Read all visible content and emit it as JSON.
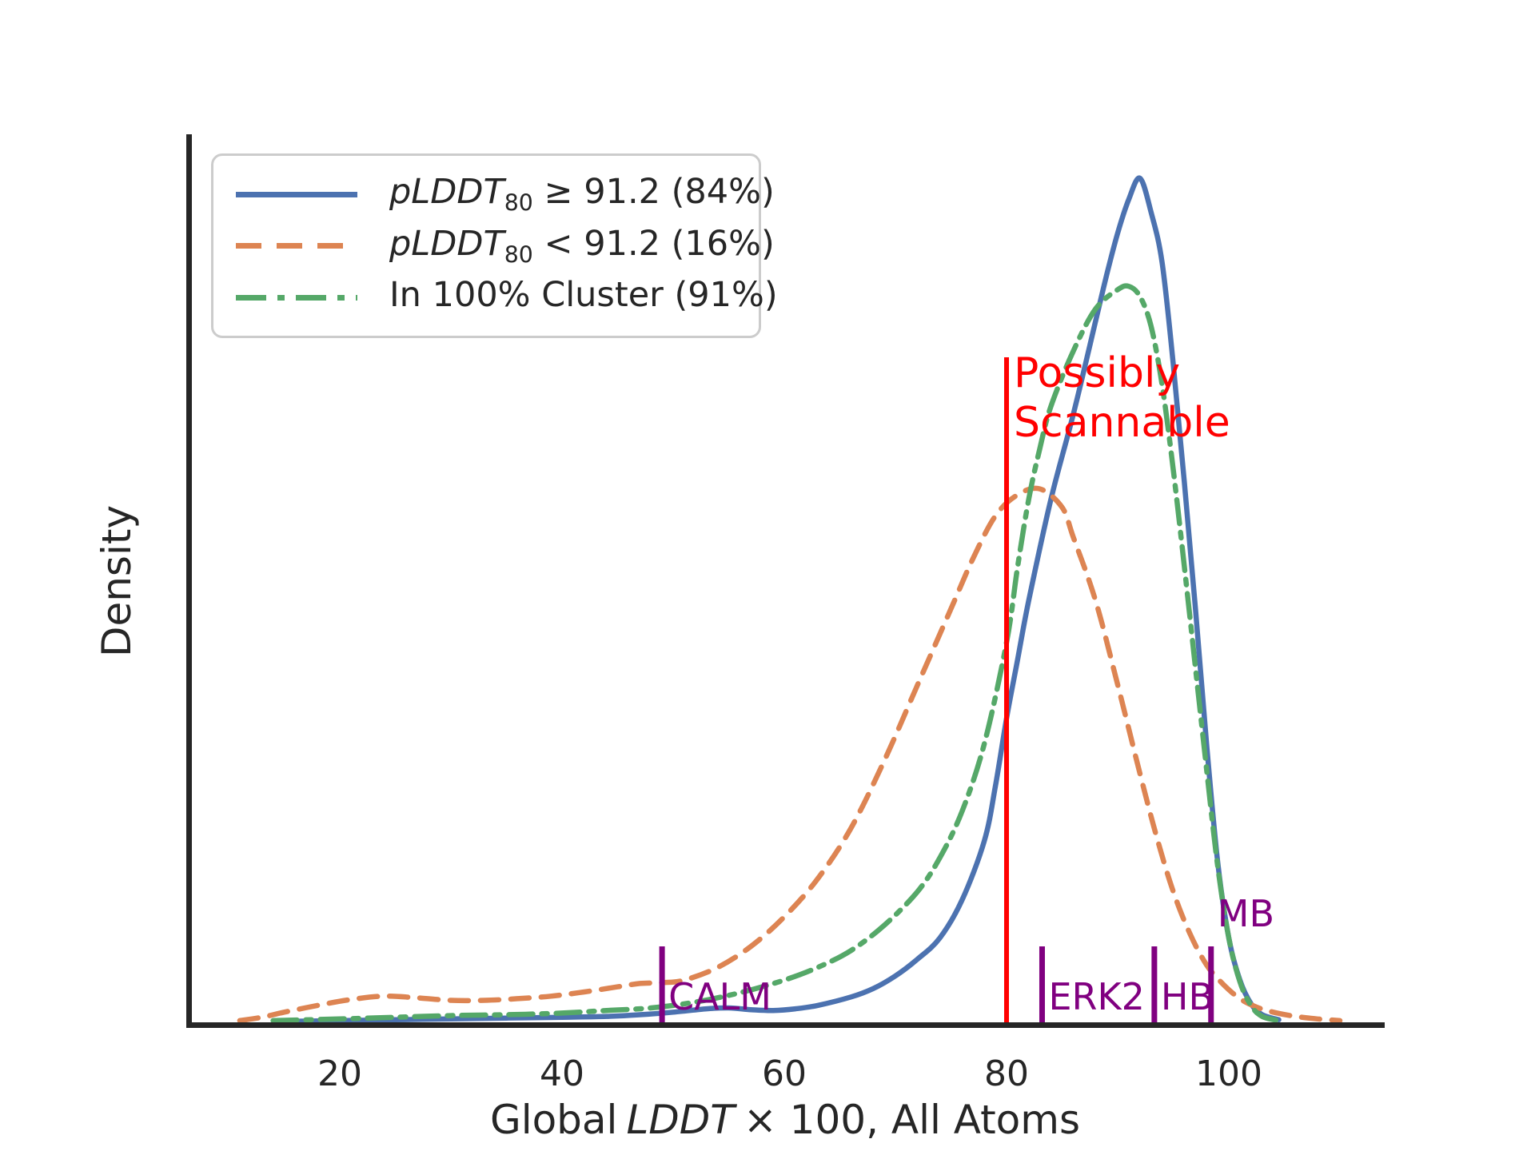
{
  "figure": {
    "background": "#ffffff",
    "axis_color": "#262626",
    "ylabel": "Density",
    "xlabel": {
      "prefix": "Global",
      "italic": "LDDT",
      "suffix": "× 100, All Atoms"
    },
    "x_ticks": [
      {
        "label": "20",
        "value": 20
      },
      {
        "label": "40",
        "value": 40
      },
      {
        "label": "60",
        "value": 60
      },
      {
        "label": "80",
        "value": 80
      },
      {
        "label": "100",
        "value": 100
      }
    ]
  },
  "legend": {
    "items": [
      {
        "key": "plddt_high",
        "italic": "pLDDT",
        "sub": "80",
        "rest": " ≥ 91.2 (84%)",
        "color": "#4C72B0",
        "dash": "solid"
      },
      {
        "key": "plddt_low",
        "italic": "pLDDT",
        "sub": "80",
        "rest": " < 91.2 (16%)",
        "color": "#DD8452",
        "dash": "dashed"
      },
      {
        "key": "in_cluster",
        "italic": "",
        "sub": "",
        "rest": "In 100% Cluster (91%)",
        "color": "#55A868",
        "dash": "dashdot"
      }
    ]
  },
  "chart_data": {
    "type": "line",
    "subtype": "kde-density",
    "title": "",
    "xlabel": "Global LDDT × 100, All Atoms",
    "ylabel": "Density",
    "xlim": [
      6,
      114
    ],
    "ylim_relative": [
      0,
      1.08
    ],
    "grid": false,
    "legend_position": "upper left",
    "note": "y values are density relative to the tallest (blue) peak = 1.0; no y tick labels shown in figure",
    "series": [
      {
        "name": "pLDDT80 ≥ 91.2 (84%)",
        "key": "plddt_high",
        "color": "#4C72B0",
        "linestyle": "solid",
        "points": [
          [
            15,
            0.001
          ],
          [
            20,
            0.002
          ],
          [
            25,
            0.003
          ],
          [
            30,
            0.004
          ],
          [
            35,
            0.005
          ],
          [
            40,
            0.006
          ],
          [
            44,
            0.007
          ],
          [
            47,
            0.009
          ],
          [
            50,
            0.012
          ],
          [
            53,
            0.016
          ],
          [
            55,
            0.017
          ],
          [
            57,
            0.015
          ],
          [
            59,
            0.014
          ],
          [
            61,
            0.016
          ],
          [
            63,
            0.02
          ],
          [
            66,
            0.03
          ],
          [
            68,
            0.04
          ],
          [
            70,
            0.055
          ],
          [
            72,
            0.075
          ],
          [
            74,
            0.1
          ],
          [
            76,
            0.145
          ],
          [
            78,
            0.215
          ],
          [
            79,
            0.28
          ],
          [
            80,
            0.36
          ],
          [
            81,
            0.43
          ],
          [
            82,
            0.5
          ],
          [
            84,
            0.62
          ],
          [
            86,
            0.72
          ],
          [
            88,
            0.83
          ],
          [
            89,
            0.885
          ],
          [
            90,
            0.935
          ],
          [
            91,
            0.975
          ],
          [
            92,
            1.0
          ],
          [
            93,
            0.96
          ],
          [
            94,
            0.9
          ],
          [
            95,
            0.78
          ],
          [
            96,
            0.64
          ],
          [
            97,
            0.49
          ],
          [
            98,
            0.33
          ],
          [
            99,
            0.19
          ],
          [
            100,
            0.1
          ],
          [
            101,
            0.05
          ],
          [
            102,
            0.022
          ],
          [
            103,
            0.009
          ],
          [
            104.5,
            0.003
          ]
        ]
      },
      {
        "name": "pLDDT80 < 91.2 (16%)",
        "key": "plddt_low",
        "color": "#DD8452",
        "linestyle": "dashed",
        "points": [
          [
            11,
            0.002
          ],
          [
            13,
            0.006
          ],
          [
            15,
            0.012
          ],
          [
            18,
            0.02
          ],
          [
            21,
            0.027
          ],
          [
            24,
            0.031
          ],
          [
            27,
            0.029
          ],
          [
            30,
            0.026
          ],
          [
            33,
            0.026
          ],
          [
            36,
            0.028
          ],
          [
            39,
            0.031
          ],
          [
            42,
            0.036
          ],
          [
            45,
            0.042
          ],
          [
            47,
            0.046
          ],
          [
            49,
            0.047
          ],
          [
            51,
            0.05
          ],
          [
            54,
            0.065
          ],
          [
            57,
            0.09
          ],
          [
            60,
            0.125
          ],
          [
            63,
            0.17
          ],
          [
            66,
            0.23
          ],
          [
            69,
            0.31
          ],
          [
            72,
            0.4
          ],
          [
            75,
            0.49
          ],
          [
            77,
            0.55
          ],
          [
            79,
            0.6
          ],
          [
            81,
            0.625
          ],
          [
            83,
            0.632
          ],
          [
            85,
            0.61
          ],
          [
            86,
            0.575
          ],
          [
            88,
            0.5
          ],
          [
            90,
            0.4
          ],
          [
            92,
            0.295
          ],
          [
            93.5,
            0.22
          ],
          [
            95,
            0.155
          ],
          [
            96.5,
            0.105
          ],
          [
            98,
            0.068
          ],
          [
            99.5,
            0.045
          ],
          [
            101,
            0.028
          ],
          [
            102.5,
            0.018
          ],
          [
            104,
            0.012
          ],
          [
            106,
            0.007
          ],
          [
            108,
            0.004
          ],
          [
            110,
            0.002
          ]
        ]
      },
      {
        "name": "In 100% Cluster (91%)",
        "key": "in_cluster",
        "color": "#55A868",
        "linestyle": "dashdot",
        "points": [
          [
            14,
            0.002
          ],
          [
            20,
            0.004
          ],
          [
            25,
            0.006
          ],
          [
            30,
            0.008
          ],
          [
            35,
            0.009
          ],
          [
            40,
            0.011
          ],
          [
            44,
            0.014
          ],
          [
            48,
            0.017
          ],
          [
            52,
            0.024
          ],
          [
            56,
            0.035
          ],
          [
            60,
            0.05
          ],
          [
            63,
            0.065
          ],
          [
            66,
            0.085
          ],
          [
            69,
            0.115
          ],
          [
            72,
            0.155
          ],
          [
            74,
            0.195
          ],
          [
            76,
            0.25
          ],
          [
            78,
            0.33
          ],
          [
            80,
            0.45
          ],
          [
            81,
            0.54
          ],
          [
            82,
            0.62
          ],
          [
            83,
            0.68
          ],
          [
            84,
            0.73
          ],
          [
            86,
            0.795
          ],
          [
            88,
            0.845
          ],
          [
            90,
            0.868
          ],
          [
            91,
            0.872
          ],
          [
            92,
            0.86
          ],
          [
            93,
            0.825
          ],
          [
            94,
            0.755
          ],
          [
            95,
            0.655
          ],
          [
            96,
            0.54
          ],
          [
            97,
            0.42
          ],
          [
            98,
            0.3
          ],
          [
            99,
            0.185
          ],
          [
            100,
            0.1
          ],
          [
            101,
            0.048
          ],
          [
            102,
            0.02
          ],
          [
            103,
            0.007
          ],
          [
            104.5,
            0.002
          ]
        ]
      }
    ],
    "vline": {
      "x": 80,
      "color": "#ff0000",
      "label_lines": [
        "Possibly",
        "Scannable"
      ]
    },
    "marker_color": "#800080",
    "reference_markers": [
      {
        "name": "CALM",
        "x": 49,
        "label_position": "right"
      },
      {
        "name": "ERK2",
        "x": 83.2,
        "label_position": "right"
      },
      {
        "name": "HB",
        "x": 93.3,
        "label_position": "right"
      },
      {
        "name": "MB",
        "x": 98.4,
        "label_position": "above"
      }
    ]
  }
}
